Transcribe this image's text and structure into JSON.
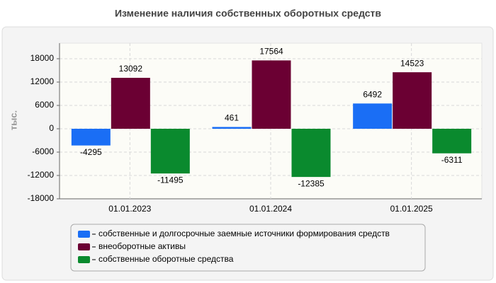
{
  "chart_data": {
    "type": "bar",
    "title": "Изменение наличия собственных оборотных средств",
    "y_label": "тыс.",
    "categories": [
      "01.01.2023",
      "01.01.2024",
      "01.01.2025"
    ],
    "series": [
      {
        "name": "собственные и долгосрочные заемные источники формирования средств",
        "color": "#1a6ef5",
        "values": [
          -4295,
          461,
          6492
        ]
      },
      {
        "name": "внеоборотные активы",
        "color": "#6b0033",
        "values": [
          13092,
          17564,
          14523
        ]
      },
      {
        "name": "собственные оборотные средства",
        "color": "#0a8a2e",
        "values": [
          -11495,
          -12385,
          -6311
        ]
      }
    ],
    "ylim": [
      -18000,
      22000
    ],
    "yticks": [
      -18000,
      -12000,
      -6000,
      0,
      6000,
      12000,
      18000
    ],
    "grid": true
  }
}
